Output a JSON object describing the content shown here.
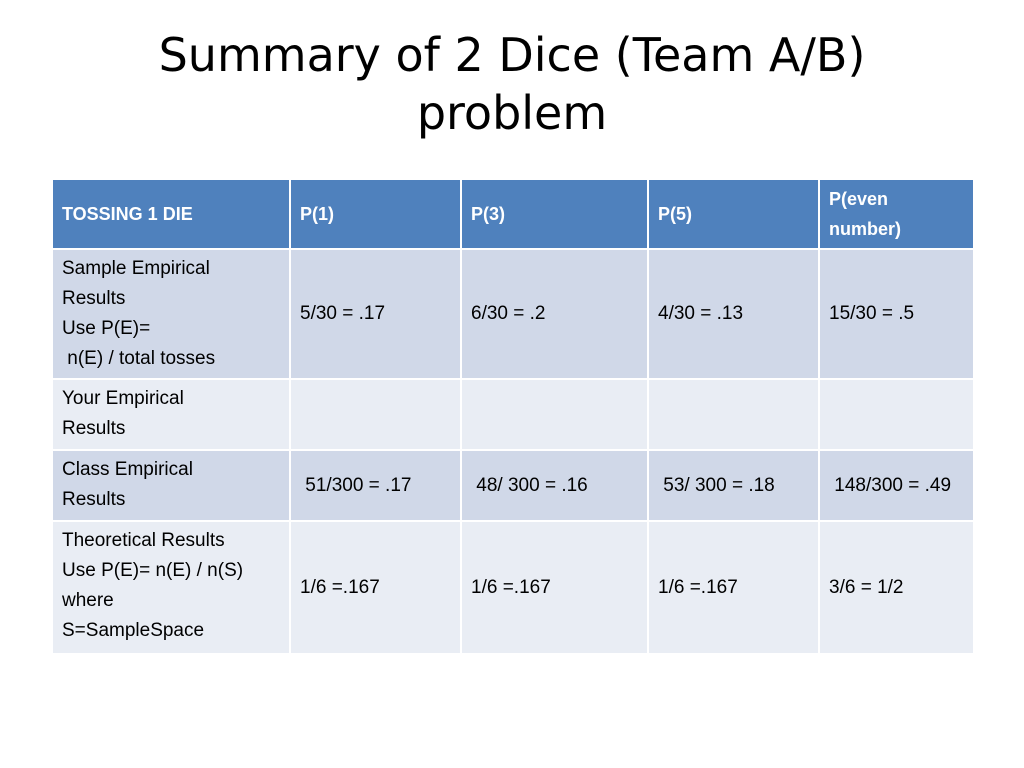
{
  "slide": {
    "title_line1": "Summary of 2 Dice (Team A/B)",
    "title_line2": "problem"
  },
  "table": {
    "headers": [
      "TOSSING 1 DIE",
      "P(1)",
      "P(3)",
      "P(5)",
      "P(even number)"
    ],
    "rows": [
      {
        "label_lines": [
          "Sample Empirical",
          "Results",
          "Use P(E)=",
          " n(E) / total tosses"
        ],
        "cells": [
          "5/30 = .17",
          "6/30 = .2",
          "4/30 = .13",
          "15/30 = .5"
        ]
      },
      {
        "label_lines": [
          "Your Empirical",
          "Results"
        ],
        "cells": [
          "",
          "",
          "",
          ""
        ]
      },
      {
        "label_lines": [
          "Class Empirical",
          "Results"
        ],
        "cells": [
          " 51/300 = .17",
          " 48/ 300 = .16",
          " 53/ 300 = .18",
          " 148/300 = .49"
        ]
      },
      {
        "label_lines": [
          "Theoretical Results",
          "Use P(E)= n(E) / n(S)",
          "where",
          "S=SampleSpace"
        ],
        "cells": [
          "1/6 =.167",
          "1/6 =.167",
          "1/6 =.167",
          "3/6 = 1/2"
        ]
      }
    ]
  },
  "colors": {
    "header_bg": "#4f81bd",
    "row_dark": "#d0d8e8",
    "row_light": "#e9edf4"
  }
}
